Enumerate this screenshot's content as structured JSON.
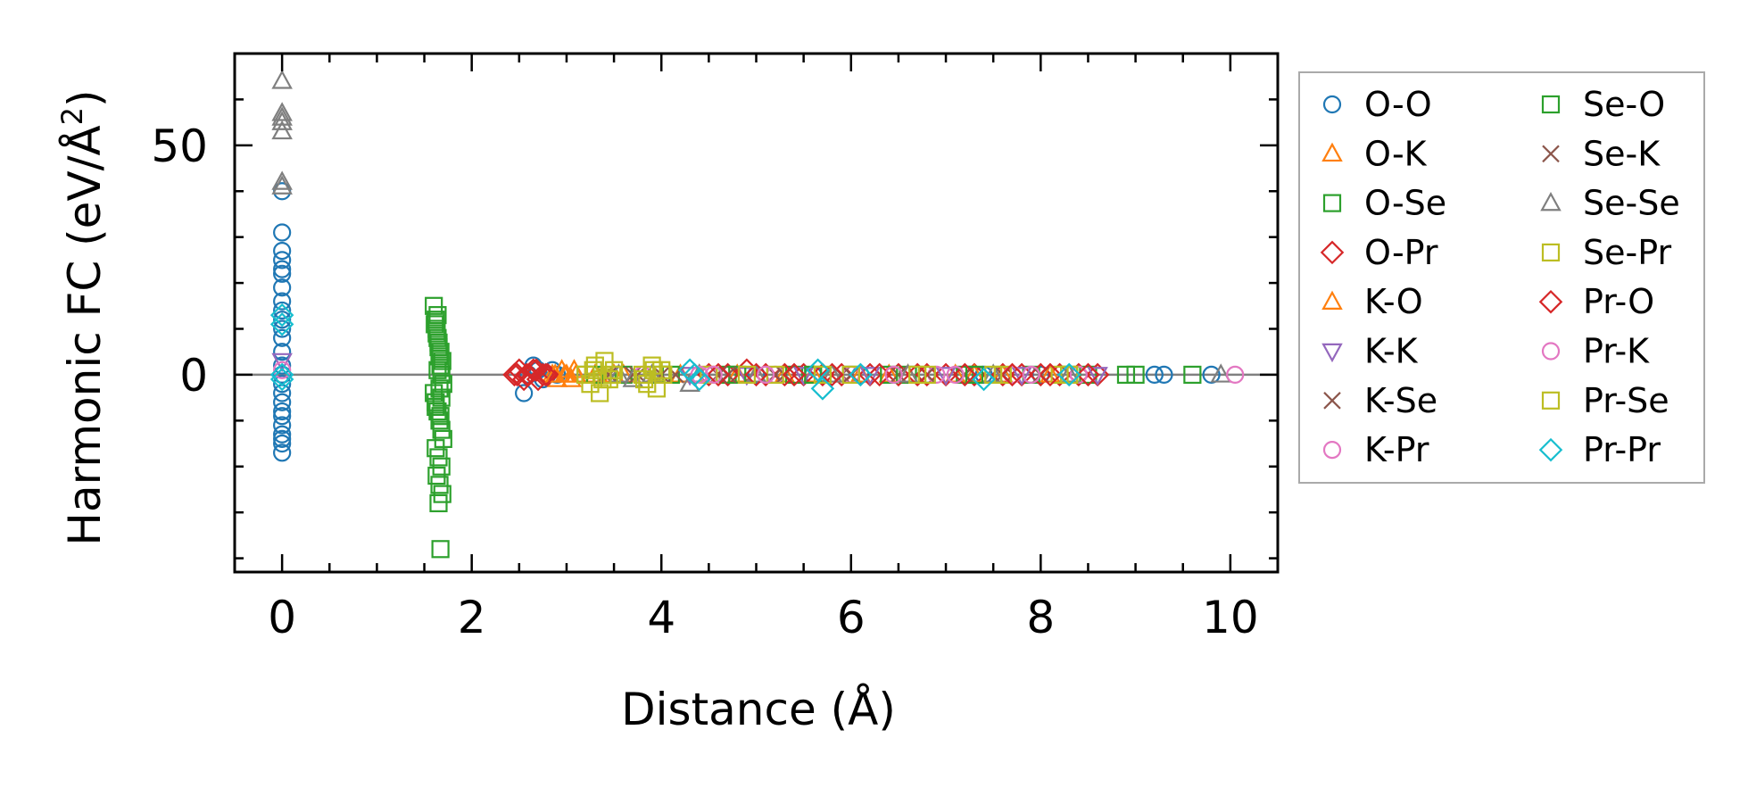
{
  "chart_data": {
    "type": "scatter",
    "title": "",
    "xlabel": "Distance (Å)",
    "ylabel_main": "Harmonic FC (eV/Å",
    "ylabel_sup": "2",
    "ylabel_close": ")",
    "xlim": [
      -0.5,
      10.5
    ],
    "ylim": [
      -43,
      70
    ],
    "xticks": [
      0,
      2,
      4,
      6,
      8,
      10
    ],
    "xtick_labels": [
      "0",
      "2",
      "4",
      "6",
      "8",
      "10"
    ],
    "yticks": [
      0,
      50
    ],
    "ytick_labels": [
      "0",
      "50"
    ],
    "minor_xtick_step": 0.5,
    "minor_ytick_step": 10,
    "zero_line": true,
    "grid": false,
    "legend_position": "outside-right",
    "legend_columns": 2,
    "series": [
      {
        "name": "O-O",
        "marker": "circle",
        "color": "#1f77b4",
        "x": [
          0,
          0,
          0,
          0,
          0,
          0,
          0,
          0,
          0,
          0,
          0,
          0,
          0,
          0,
          0,
          0,
          0,
          0,
          0,
          0,
          0,
          0,
          0,
          0,
          0,
          0,
          2.55,
          2.6,
          2.65,
          2.7,
          2.75,
          2.8,
          2.85,
          2.9,
          5.0,
          5.6,
          6.1,
          6.8,
          7.4,
          8.0,
          9.2,
          9.3,
          9.8
        ],
        "y": [
          40,
          31,
          27,
          25,
          23,
          22,
          19,
          16,
          14,
          12,
          10,
          8,
          5,
          2,
          0,
          -2,
          -4,
          -6,
          -8,
          -9,
          -11,
          -13,
          -14,
          -15,
          -17,
          0,
          -4,
          0,
          2,
          1,
          -1,
          0,
          1,
          0,
          0,
          0,
          0,
          0,
          0,
          0,
          0,
          0,
          0
        ]
      },
      {
        "name": "O-K",
        "marker": "triangle-up",
        "color": "#ff7f0e",
        "x": [
          2.85,
          2.9,
          2.95,
          3.0,
          3.05,
          3.1,
          3.3,
          3.6,
          4.2,
          4.8,
          5.3,
          5.6,
          6.1,
          6.6,
          7.1,
          7.6
        ],
        "y": [
          0,
          -1,
          1,
          0,
          -1,
          0,
          0,
          0,
          0,
          0,
          0,
          0,
          0,
          0,
          0,
          0
        ]
      },
      {
        "name": "O-Se",
        "marker": "square",
        "color": "#2ca02c",
        "x": [
          1.6,
          1.62,
          1.63,
          1.64,
          1.65,
          1.66,
          1.67,
          1.68,
          1.7,
          1.6,
          1.62,
          1.64,
          1.66,
          1.68,
          1.7,
          1.62,
          1.65,
          1.68,
          1.63,
          1.66,
          1.69,
          1.65,
          1.67,
          1.64,
          3.2,
          3.6,
          4.1,
          4.7,
          5.4,
          6.0,
          6.6,
          7.2,
          7.9,
          8.5,
          8.9,
          9.6
        ],
        "y": [
          15,
          12,
          10,
          8,
          6,
          4,
          2,
          0,
          -2,
          -4,
          -6,
          -8,
          -10,
          -12,
          -14,
          -16,
          -18,
          -20,
          -22,
          -24,
          -26,
          -28,
          -38,
          13,
          0,
          0,
          0,
          0,
          0,
          0,
          0,
          0,
          0,
          0,
          0,
          0
        ]
      },
      {
        "name": "O-Pr",
        "marker": "diamond",
        "color": "#d62728",
        "x": [
          2.45,
          2.5,
          2.55,
          2.6,
          2.65,
          2.7,
          2.75,
          2.8,
          4.5,
          4.7,
          4.9,
          5.1,
          5.3,
          5.5,
          5.7,
          5.9,
          6.2,
          6.5,
          6.8,
          7.0,
          7.3,
          7.6,
          7.8,
          8.0,
          8.2,
          8.4,
          8.6
        ],
        "y": [
          0,
          1,
          -1,
          0,
          1,
          -1,
          0,
          0,
          0,
          0,
          1,
          0,
          0,
          0,
          0,
          0,
          0,
          0,
          0,
          0,
          0,
          0,
          0,
          0,
          0,
          0,
          0
        ]
      },
      {
        "name": "K-O",
        "marker": "triangle-up",
        "color": "#ff7f0e",
        "x": [
          2.88,
          2.98,
          3.08,
          3.5,
          4.4,
          5.0,
          5.8,
          6.4,
          7.3,
          8.1
        ],
        "y": [
          0,
          0,
          1,
          0,
          0,
          0,
          0,
          0,
          0,
          0
        ]
      },
      {
        "name": "K-K",
        "marker": "triangle-down",
        "color": "#9467bd",
        "x": [
          0,
          4.3,
          4.9,
          5.5,
          6.2,
          7.0,
          7.8,
          8.6
        ],
        "y": [
          3,
          0,
          0,
          0,
          0,
          0,
          0,
          0
        ]
      },
      {
        "name": "K-Se",
        "marker": "x",
        "color": "#8c564b",
        "x": [
          3.4,
          3.7,
          4.0,
          4.6,
          5.2,
          5.9,
          6.5,
          7.2,
          8.0
        ],
        "y": [
          0,
          0,
          0,
          0,
          0,
          0,
          0,
          0,
          0
        ]
      },
      {
        "name": "K-Pr",
        "marker": "circle",
        "color": "#e377c2",
        "x": [
          0,
          3.8,
          4.5,
          5.2,
          6.0,
          6.9,
          7.7,
          8.4
        ],
        "y": [
          1,
          0,
          0,
          0,
          0,
          0,
          0,
          0
        ]
      },
      {
        "name": "Se-O",
        "marker": "square",
        "color": "#2ca02c",
        "x": [
          1.61,
          1.63,
          1.65,
          1.67,
          1.69,
          1.64,
          1.66,
          1.68,
          1.62,
          1.67,
          3.3,
          4.0,
          4.8,
          5.6,
          6.4,
          7.3,
          8.3,
          9.0
        ],
        "y": [
          11,
          9,
          7,
          5,
          3,
          1,
          -3,
          -5,
          -7,
          -9,
          0,
          0,
          0,
          0,
          0,
          0,
          0,
          0
        ]
      },
      {
        "name": "Se-K",
        "marker": "x",
        "color": "#8c564b",
        "x": [
          3.45,
          3.75,
          4.15,
          4.7,
          5.3,
          6.0,
          6.8,
          7.6
        ],
        "y": [
          0,
          0,
          0,
          0,
          0,
          0,
          0,
          0
        ]
      },
      {
        "name": "Se-Se",
        "marker": "triangle-up",
        "color": "#7f7f7f",
        "x": [
          0,
          0,
          0,
          0,
          0,
          0,
          0,
          3.55,
          3.7,
          3.9,
          4.3,
          4.4,
          5.0,
          5.8,
          6.6,
          7.5,
          8.3,
          9.9
        ],
        "y": [
          64,
          57,
          56,
          55,
          53,
          42,
          41,
          0,
          -1,
          0,
          -2,
          0,
          0,
          0,
          0,
          0,
          0,
          0
        ]
      },
      {
        "name": "Se-Pr",
        "marker": "square",
        "color": "#bcbd22",
        "x": [
          3.2,
          3.25,
          3.3,
          3.35,
          3.4,
          3.45,
          3.5,
          3.8,
          3.85,
          3.9,
          3.95,
          4.0,
          4.5,
          5.2,
          6.0,
          6.8,
          7.6,
          8.2
        ],
        "y": [
          0,
          -2,
          2,
          -4,
          3,
          -1,
          1,
          0,
          -2,
          2,
          -3,
          1,
          0,
          0,
          0,
          0,
          0,
          0
        ]
      },
      {
        "name": "Pr-O",
        "marker": "diamond",
        "color": "#d62728",
        "x": [
          2.48,
          2.58,
          2.68,
          2.78,
          4.6,
          5.0,
          5.4,
          5.8,
          6.3,
          6.7,
          7.2,
          7.7,
          8.1,
          8.5
        ],
        "y": [
          0,
          0,
          1,
          0,
          0,
          0,
          0,
          0,
          0,
          0,
          0,
          0,
          0,
          0
        ]
      },
      {
        "name": "Pr-K",
        "marker": "circle",
        "color": "#e377c2",
        "x": [
          4.4,
          4.55,
          5.1,
          6.45,
          7.1,
          7.9,
          10.05
        ],
        "y": [
          0,
          0,
          0,
          0,
          0,
          0,
          0
        ]
      },
      {
        "name": "Pr-Se",
        "marker": "square",
        "color": "#bcbd22",
        "x": [
          3.28,
          3.38,
          3.48,
          3.82,
          3.92,
          4.02,
          4.9,
          5.7,
          6.7,
          7.5,
          8.3
        ],
        "y": [
          1,
          -1,
          0,
          -1,
          1,
          0,
          0,
          0,
          0,
          0,
          0
        ]
      },
      {
        "name": "Pr-Pr",
        "marker": "diamond",
        "color": "#17becf",
        "x": [
          0,
          0,
          0,
          0,
          4.3,
          4.35,
          4.4,
          5.65,
          5.7,
          6.1,
          7.4,
          8.3
        ],
        "y": [
          13,
          11,
          0,
          -1,
          1,
          0,
          -1,
          1,
          -3,
          0,
          -1,
          0
        ]
      }
    ]
  }
}
